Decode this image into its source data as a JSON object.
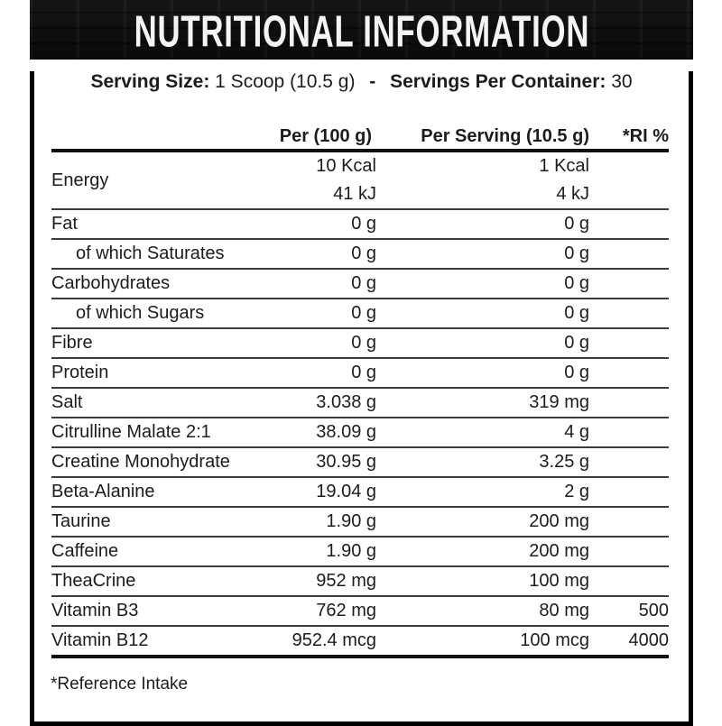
{
  "header": {
    "title": "NUTRITIONAL INFORMATION"
  },
  "serving": {
    "size_label": "Serving Size:",
    "size_value": "1 Scoop (10.5 g)",
    "separator": "-",
    "container_label": "Servings Per Container:",
    "container_value": "30"
  },
  "table": {
    "header": {
      "name": "",
      "per100": "Per (100 g)",
      "perServing": "Per Serving (10.5 g)",
      "ri": "*RI %"
    },
    "rows": [
      {
        "name": "Energy",
        "indent": false,
        "per100": [
          "10 Kcal",
          "41 kJ"
        ],
        "perServing": [
          "1 Kcal",
          "4 kJ"
        ],
        "ri": ""
      },
      {
        "name": "Fat",
        "indent": false,
        "per100": "0 g",
        "perServing": "0 g",
        "ri": ""
      },
      {
        "name": "of which Saturates",
        "indent": true,
        "per100": "0 g",
        "perServing": "0 g",
        "ri": ""
      },
      {
        "name": "Carbohydrates",
        "indent": false,
        "per100": "0 g",
        "perServing": "0 g",
        "ri": ""
      },
      {
        "name": "of which Sugars",
        "indent": true,
        "per100": "0 g",
        "perServing": "0 g",
        "ri": ""
      },
      {
        "name": "Fibre",
        "indent": false,
        "per100": "0 g",
        "perServing": "0 g",
        "ri": ""
      },
      {
        "name": "Protein",
        "indent": false,
        "per100": "0 g",
        "perServing": "0 g",
        "ri": ""
      },
      {
        "name": "Salt",
        "indent": false,
        "per100": "3.038 g",
        "perServing": "319 mg",
        "ri": ""
      },
      {
        "name": "Citrulline Malate 2:1",
        "indent": false,
        "per100": "38.09 g",
        "perServing": "4 g",
        "ri": ""
      },
      {
        "name": "Creatine Monohydrate",
        "indent": false,
        "per100": "30.95 g",
        "perServing": "3.25 g",
        "ri": ""
      },
      {
        "name": "Beta-Alanine",
        "indent": false,
        "per100": "19.04 g",
        "perServing": "2 g",
        "ri": ""
      },
      {
        "name": "Taurine",
        "indent": false,
        "per100": "1.90 g",
        "perServing": "200 mg",
        "ri": ""
      },
      {
        "name": "Caffeine",
        "indent": false,
        "per100": "1.90 g",
        "perServing": "200 mg",
        "ri": ""
      },
      {
        "name": "TheaCrine",
        "indent": false,
        "per100": "952 mg",
        "perServing": "100 mg",
        "ri": ""
      },
      {
        "name": "Vitamin B3",
        "indent": false,
        "per100": "762 mg",
        "perServing": "80 mg",
        "ri": "500"
      },
      {
        "name": "Vitamin B12",
        "indent": false,
        "per100": "952.4 mcg",
        "perServing": "100 mcg",
        "ri": "4000",
        "thick_bottom": true
      }
    ]
  },
  "footnote": "*Reference Intake",
  "colors": {
    "frame": "#000000",
    "header_bg": "#0c0c0c",
    "header_text": "#f4f4f4",
    "body_bg": "#ffffff",
    "text": "#1c1c1c",
    "rule_thin": "#3c3c3c",
    "rule_thick": "#101010"
  }
}
